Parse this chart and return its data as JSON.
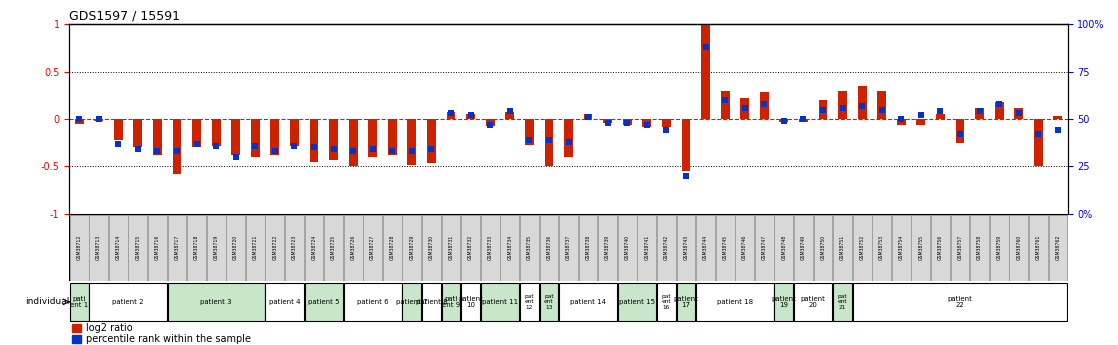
{
  "title": "GDS1597 / 15591",
  "gsm_labels": [
    "GSM38712",
    "GSM38713",
    "GSM38714",
    "GSM38715",
    "GSM38716",
    "GSM38717",
    "GSM38718",
    "GSM38719",
    "GSM38720",
    "GSM38721",
    "GSM38722",
    "GSM38723",
    "GSM38724",
    "GSM38725",
    "GSM38726",
    "GSM38727",
    "GSM38728",
    "GSM38729",
    "GSM38730",
    "GSM38731",
    "GSM38732",
    "GSM38733",
    "GSM38734",
    "GSM38735",
    "GSM38736",
    "GSM38737",
    "GSM38738",
    "GSM38739",
    "GSM38740",
    "GSM38741",
    "GSM38742",
    "GSM38743",
    "GSM38744",
    "GSM38745",
    "GSM38746",
    "GSM38747",
    "GSM38748",
    "GSM38749",
    "GSM38750",
    "GSM38751",
    "GSM38752",
    "GSM38753",
    "GSM38754",
    "GSM38755",
    "GSM38756",
    "GSM38757",
    "GSM38758",
    "GSM38759",
    "GSM38760",
    "GSM38761",
    "GSM38762"
  ],
  "log2_ratio": [
    -0.05,
    -0.02,
    -0.22,
    -0.3,
    -0.38,
    -0.58,
    -0.3,
    -0.28,
    -0.38,
    -0.4,
    -0.38,
    -0.28,
    -0.45,
    -0.43,
    -0.5,
    -0.4,
    -0.38,
    -0.48,
    -0.46,
    0.07,
    0.05,
    -0.07,
    0.07,
    -0.27,
    -0.5,
    -0.4,
    0.05,
    -0.04,
    -0.06,
    -0.08,
    -0.08,
    -0.55,
    1.02,
    0.3,
    0.22,
    0.28,
    -0.03,
    -0.03,
    0.2,
    0.3,
    0.35,
    0.3,
    -0.06,
    -0.06,
    0.05,
    -0.25,
    0.12,
    0.18,
    0.12,
    -0.5,
    0.03
  ],
  "percentile": [
    50,
    50,
    37,
    34,
    33,
    33,
    37,
    36,
    30,
    36,
    33,
    36,
    35,
    34,
    33,
    34,
    33,
    33,
    34,
    53,
    52,
    47,
    54,
    39,
    39,
    38,
    51,
    48,
    48,
    47,
    44,
    20,
    88,
    60,
    56,
    58,
    49,
    50,
    55,
    56,
    57,
    55,
    50,
    52,
    54,
    42,
    54,
    58,
    53,
    42,
    44
  ],
  "patients": [
    {
      "label": "pati\nent 1",
      "start": 0,
      "end": 1,
      "color": "#c8e6c9"
    },
    {
      "label": "patient 2",
      "start": 1,
      "end": 5,
      "color": "#ffffff"
    },
    {
      "label": "patient 3",
      "start": 5,
      "end": 10,
      "color": "#c8e6c9"
    },
    {
      "label": "patient 4",
      "start": 10,
      "end": 12,
      "color": "#ffffff"
    },
    {
      "label": "patient 5",
      "start": 12,
      "end": 14,
      "color": "#c8e6c9"
    },
    {
      "label": "patient 6",
      "start": 14,
      "end": 17,
      "color": "#ffffff"
    },
    {
      "label": "patient 7",
      "start": 17,
      "end": 18,
      "color": "#c8e6c9"
    },
    {
      "label": "patient 8",
      "start": 18,
      "end": 19,
      "color": "#ffffff"
    },
    {
      "label": "pati\nent 9",
      "start": 19,
      "end": 20,
      "color": "#c8e6c9"
    },
    {
      "label": "patient\n10",
      "start": 20,
      "end": 21,
      "color": "#ffffff"
    },
    {
      "label": "patient 11",
      "start": 21,
      "end": 23,
      "color": "#c8e6c9"
    },
    {
      "label": "pat\nent\n12",
      "start": 23,
      "end": 24,
      "color": "#ffffff"
    },
    {
      "label": "pat\nent\n13",
      "start": 24,
      "end": 25,
      "color": "#c8e6c9"
    },
    {
      "label": "patient 14",
      "start": 25,
      "end": 28,
      "color": "#ffffff"
    },
    {
      "label": "patient 15",
      "start": 28,
      "end": 30,
      "color": "#c8e6c9"
    },
    {
      "label": "pat\nent\n16",
      "start": 30,
      "end": 31,
      "color": "#ffffff"
    },
    {
      "label": "patient\n17",
      "start": 31,
      "end": 32,
      "color": "#c8e6c9"
    },
    {
      "label": "patient 18",
      "start": 32,
      "end": 36,
      "color": "#ffffff"
    },
    {
      "label": "patient\n19",
      "start": 36,
      "end": 37,
      "color": "#c8e6c9"
    },
    {
      "label": "patient\n20",
      "start": 37,
      "end": 39,
      "color": "#ffffff"
    },
    {
      "label": "pat\nent\n21",
      "start": 39,
      "end": 40,
      "color": "#c8e6c9"
    },
    {
      "label": "patient\n22",
      "start": 40,
      "end": 51,
      "color": "#ffffff"
    }
  ],
  "ylim": [
    -1.0,
    1.0
  ],
  "bar_color_red": "#cc2200",
  "bar_color_blue": "#0033cc",
  "legend_red": "log2 ratio",
  "legend_blue": "percentile rank within the sample",
  "right_axis_pct": [
    0,
    25,
    50,
    75,
    100
  ],
  "right_axis_labels": [
    "0%",
    "25",
    "50",
    "75",
    "100%"
  ]
}
